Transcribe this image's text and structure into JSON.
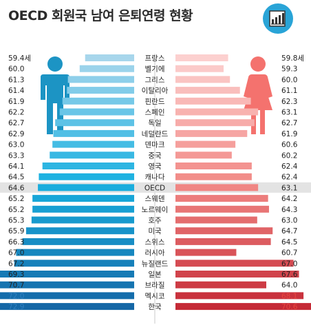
{
  "title": "OECD 회원국 남여 은퇴연령 현황",
  "icon": "bar-chart-icon",
  "colors": {
    "male_light": "#a7d6ec",
    "male_mid": "#19b0e0",
    "male_dark": "#1467a6",
    "female_light": "#fcd0cf",
    "female_mid": "#f28a86",
    "female_dark": "#c52a36",
    "male_icon": "#1c94c4",
    "female_icon": "#f4726e",
    "highlight_text": "#2f7fc0",
    "female_highlight_text": "#e8463e",
    "oecd_band": "#e3e3e3",
    "icon_bg": "#29a4d7"
  },
  "chart_data": {
    "type": "bar",
    "orientation": "horizontal-butterfly",
    "unit": "세",
    "categories": [
      "프랑스",
      "벨기에",
      "그리스",
      "이탈리아",
      "핀란드",
      "스페인",
      "독일",
      "네덜란드",
      "덴마크",
      "중국",
      "영국",
      "캐나다",
      "OECD",
      "스웨덴",
      "노르웨이",
      "호주",
      "미국",
      "스위스",
      "러시아",
      "뉴질랜드",
      "일본",
      "브라질",
      "멕시코",
      "한국"
    ],
    "series": [
      {
        "key": "male",
        "side": "left",
        "values": [
          59.4,
          60.0,
          61.3,
          61.4,
          61.9,
          62.2,
          62.7,
          62.9,
          63.0,
          63.3,
          64.1,
          64.5,
          64.6,
          65.2,
          65.2,
          65.3,
          65.9,
          66.3,
          67.0,
          67.2,
          69.3,
          70.7,
          72.0,
          72.9
        ],
        "labels": [
          "59.4세",
          "60.0",
          "61.3",
          "61.4",
          "61.9",
          "62.2",
          "62.7",
          "62.9",
          "63.0",
          "63.3",
          "64.1",
          "64.5",
          "64.6",
          "65.2",
          "65.2",
          "65.3",
          "65.9",
          "66.3",
          "67.0",
          "67.2",
          "69.3",
          "70.7",
          "72.0",
          "72.9"
        ]
      },
      {
        "key": "female",
        "side": "right",
        "values": [
          59.8,
          59.3,
          60.0,
          61.1,
          62.3,
          63.1,
          62.7,
          61.9,
          60.6,
          60.2,
          62.4,
          62.4,
          63.1,
          64.2,
          64.3,
          63.0,
          64.7,
          64.5,
          60.7,
          67.0,
          67.6,
          64.0,
          68.1,
          70.6
        ],
        "labels": [
          "59.8세",
          "59.3",
          "60.0",
          "61.1",
          "62.3",
          "63.1",
          "62.7",
          "61.9",
          "60.6",
          "60.2",
          "62.4",
          "62.4",
          "63.1",
          "64.2",
          "64.3",
          "63.0",
          "64.7",
          "64.5",
          "60.7",
          "67.0",
          "67.6",
          "64.0",
          "68.1",
          "70.6"
        ]
      }
    ],
    "highlight": [
      "OECD",
      "멕시코",
      "한국"
    ],
    "axis_range": [
      54,
      74
    ]
  }
}
